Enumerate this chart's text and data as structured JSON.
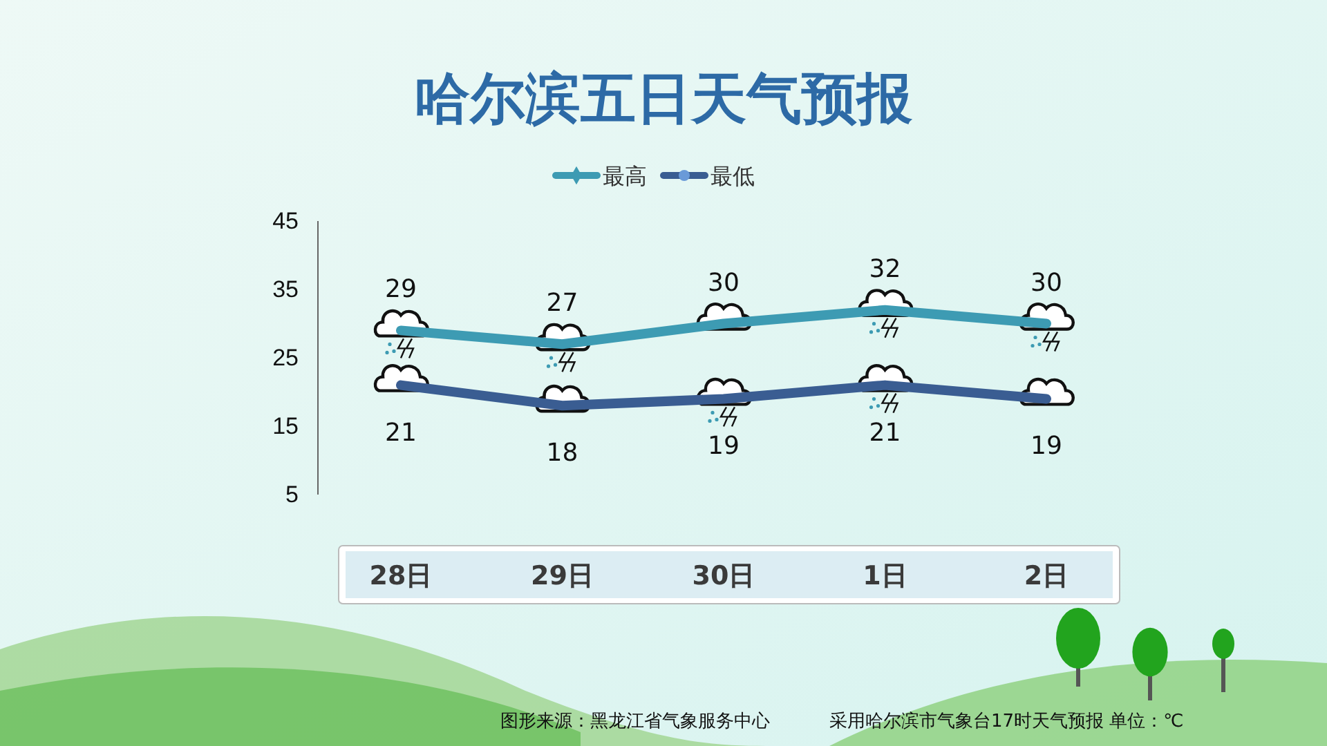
{
  "chart_data": {
    "type": "line",
    "title": "哈尔滨五日天气预报",
    "categories": [
      "28日",
      "29日",
      "30日",
      "1日",
      "2日"
    ],
    "series": [
      {
        "name": "最高",
        "color": "#3d9bb3",
        "values": [
          29,
          27,
          30,
          32,
          30
        ]
      },
      {
        "name": "最低",
        "color": "#3a5d92",
        "values": [
          21,
          18,
          19,
          21,
          19
        ]
      }
    ],
    "ylim": [
      5,
      45
    ],
    "yticks": [
      5,
      15,
      25,
      35,
      45
    ],
    "grid": false,
    "legend": "top",
    "data_labels": true,
    "annotations": [
      "图形来源：黑龙江省气象服务中心",
      "采用哈尔滨市气象台17时天气预报 单位：℃"
    ]
  }
}
